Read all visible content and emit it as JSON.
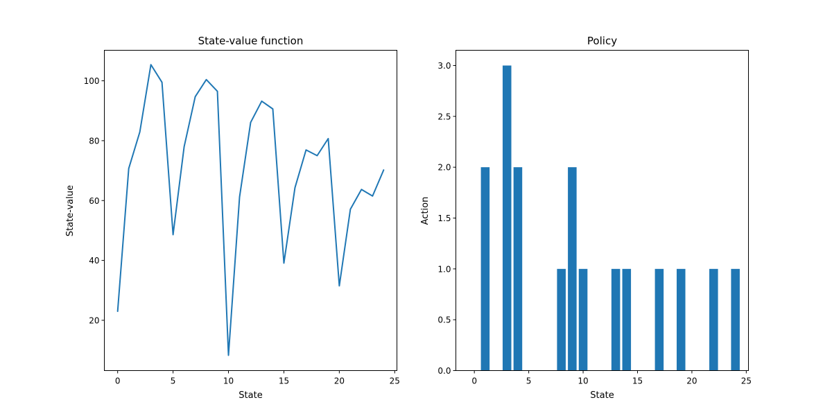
{
  "chart_data": [
    {
      "type": "line",
      "title": "State-value function",
      "xlabel": "State",
      "ylabel": "State-value",
      "xlim": [
        -1.2,
        25.2
      ],
      "ylim": [
        3.2,
        110.2
      ],
      "xticks": [
        0,
        5,
        10,
        15,
        20,
        25
      ],
      "yticks": [
        20,
        40,
        60,
        80,
        100
      ],
      "grid": false,
      "color": "#1f77b4",
      "x": [
        0,
        1,
        2,
        3,
        4,
        5,
        6,
        7,
        8,
        9,
        10,
        11,
        12,
        13,
        14,
        15,
        16,
        17,
        18,
        19,
        20,
        21,
        22,
        23,
        24
      ],
      "y": [
        23.0,
        70.7,
        82.9,
        105.4,
        99.5,
        48.6,
        78.0,
        94.7,
        100.4,
        96.5,
        8.3,
        61.2,
        86.1,
        93.2,
        90.6,
        39.1,
        64.3,
        76.9,
        75.0,
        80.7,
        31.5,
        57.1,
        63.7,
        61.5,
        70.2
      ]
    },
    {
      "type": "bar",
      "title": "Policy",
      "xlabel": "State",
      "ylabel": "Action",
      "xlim": [
        -1.7,
        25.2
      ],
      "ylim": [
        0.0,
        3.15
      ],
      "xticks": [
        0,
        5,
        10,
        15,
        20,
        25
      ],
      "yticks": [
        "0.0",
        "0.5",
        "1.0",
        "1.5",
        "2.0",
        "2.5",
        "3.0"
      ],
      "grid": false,
      "color": "#1f77b4",
      "x": [
        0,
        1,
        2,
        3,
        4,
        5,
        6,
        7,
        8,
        9,
        10,
        11,
        12,
        13,
        14,
        15,
        16,
        17,
        18,
        19,
        20,
        21,
        22,
        23,
        24
      ],
      "values": [
        0,
        2,
        0,
        3,
        2,
        0,
        0,
        0,
        1,
        2,
        1,
        0,
        0,
        1,
        1,
        0,
        0,
        1,
        0,
        1,
        0,
        0,
        1,
        0,
        1
      ]
    }
  ]
}
